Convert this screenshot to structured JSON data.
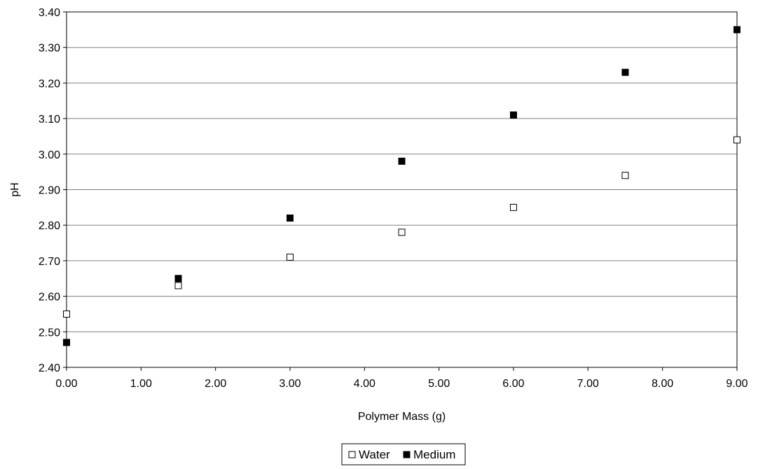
{
  "chart_data": {
    "type": "scatter",
    "title": "",
    "xlabel": "Polymer Mass (g)",
    "ylabel": "pH",
    "xlim": [
      0,
      9
    ],
    "ylim": [
      2.4,
      3.4
    ],
    "x_ticks": [
      "0.00",
      "1.00",
      "2.00",
      "3.00",
      "4.00",
      "5.00",
      "6.00",
      "7.00",
      "8.00",
      "9.00"
    ],
    "y_ticks": [
      "2.40",
      "2.50",
      "2.60",
      "2.70",
      "2.80",
      "2.90",
      "3.00",
      "3.10",
      "3.20",
      "3.30",
      "3.40"
    ],
    "grid": "horizontal",
    "legend_position": "bottom-center",
    "series": [
      {
        "name": "Water",
        "marker": "hollow-square",
        "color": "#000000",
        "x": [
          0,
          1.5,
          3,
          4.5,
          6,
          7.5,
          9
        ],
        "y": [
          2.55,
          2.63,
          2.71,
          2.78,
          2.85,
          2.94,
          3.04
        ]
      },
      {
        "name": "Medium",
        "marker": "filled-square",
        "color": "#000000",
        "x": [
          0,
          1.5,
          3,
          4.5,
          6,
          7.5,
          9
        ],
        "y": [
          2.47,
          2.65,
          2.82,
          2.98,
          3.11,
          3.23,
          3.35
        ]
      }
    ]
  }
}
